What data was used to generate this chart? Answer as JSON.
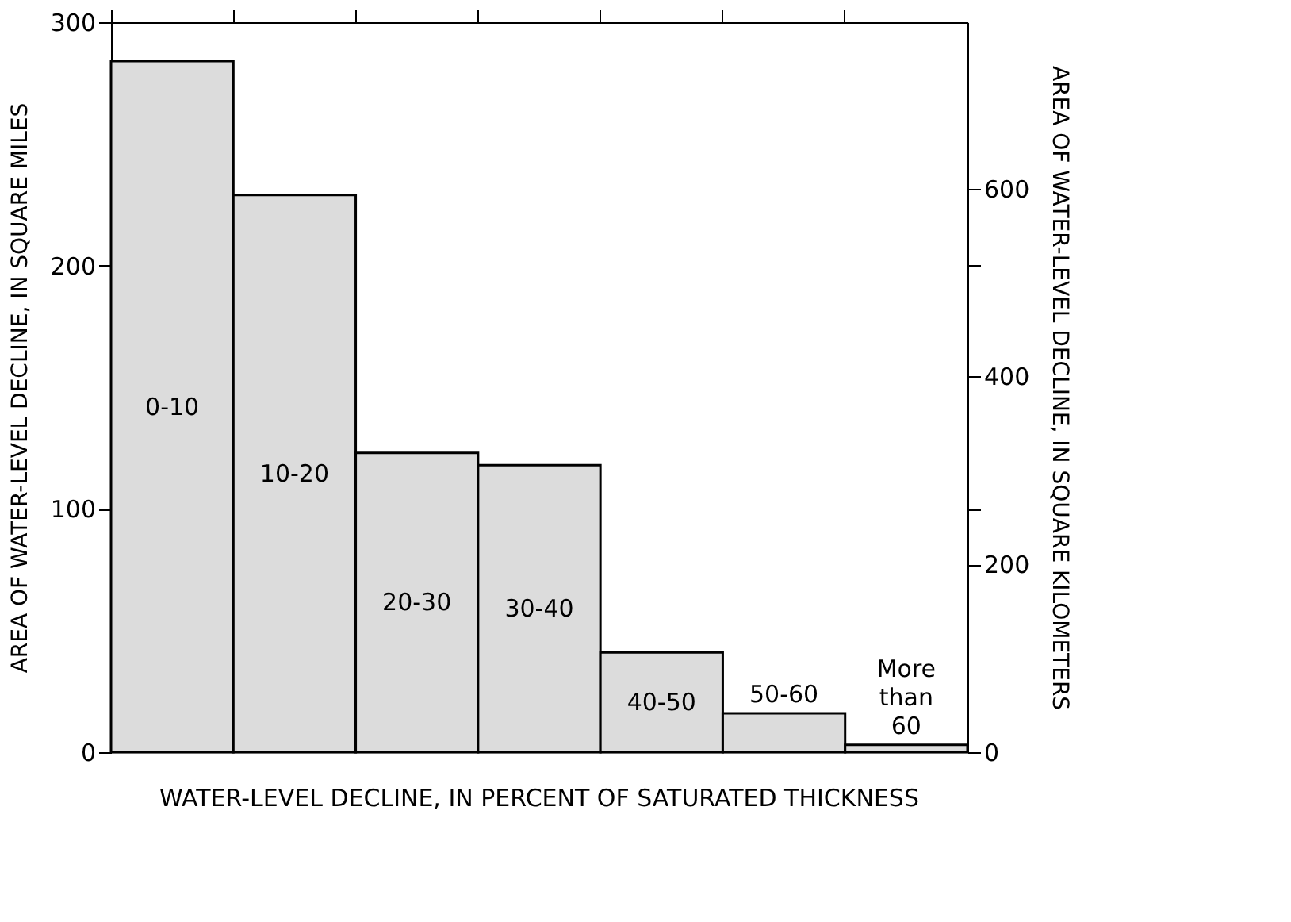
{
  "chart_data": {
    "type": "bar",
    "xlabel": "WATER-LEVEL DECLINE, IN PERCENT OF SATURATED THICKNESS",
    "ylabel": "AREA OF WATER-LEVEL DECLINE, IN SQUARE MILES",
    "y2label": "AREA OF WATER-LEVEL DECLINE, IN SQUARE KILOMETERS",
    "categories": [
      "0-10",
      "10-20",
      "20-30",
      "30-40",
      "40-50",
      "50-60",
      "More than 60"
    ],
    "series": [
      {
        "color": "#dcdcdc",
        "values": [
          284,
          229,
          123,
          118,
          41,
          16,
          3
        ]
      }
    ],
    "ylim": [
      0,
      300
    ],
    "yticks": [
      0,
      100,
      200,
      300
    ],
    "y2lim": [
      0,
      777
    ],
    "y2ticks": [
      0,
      200,
      400,
      600,
      {
        "value": 259,
        "label": null
      },
      {
        "value": 518,
        "label": null
      }
    ],
    "grid": false
  }
}
